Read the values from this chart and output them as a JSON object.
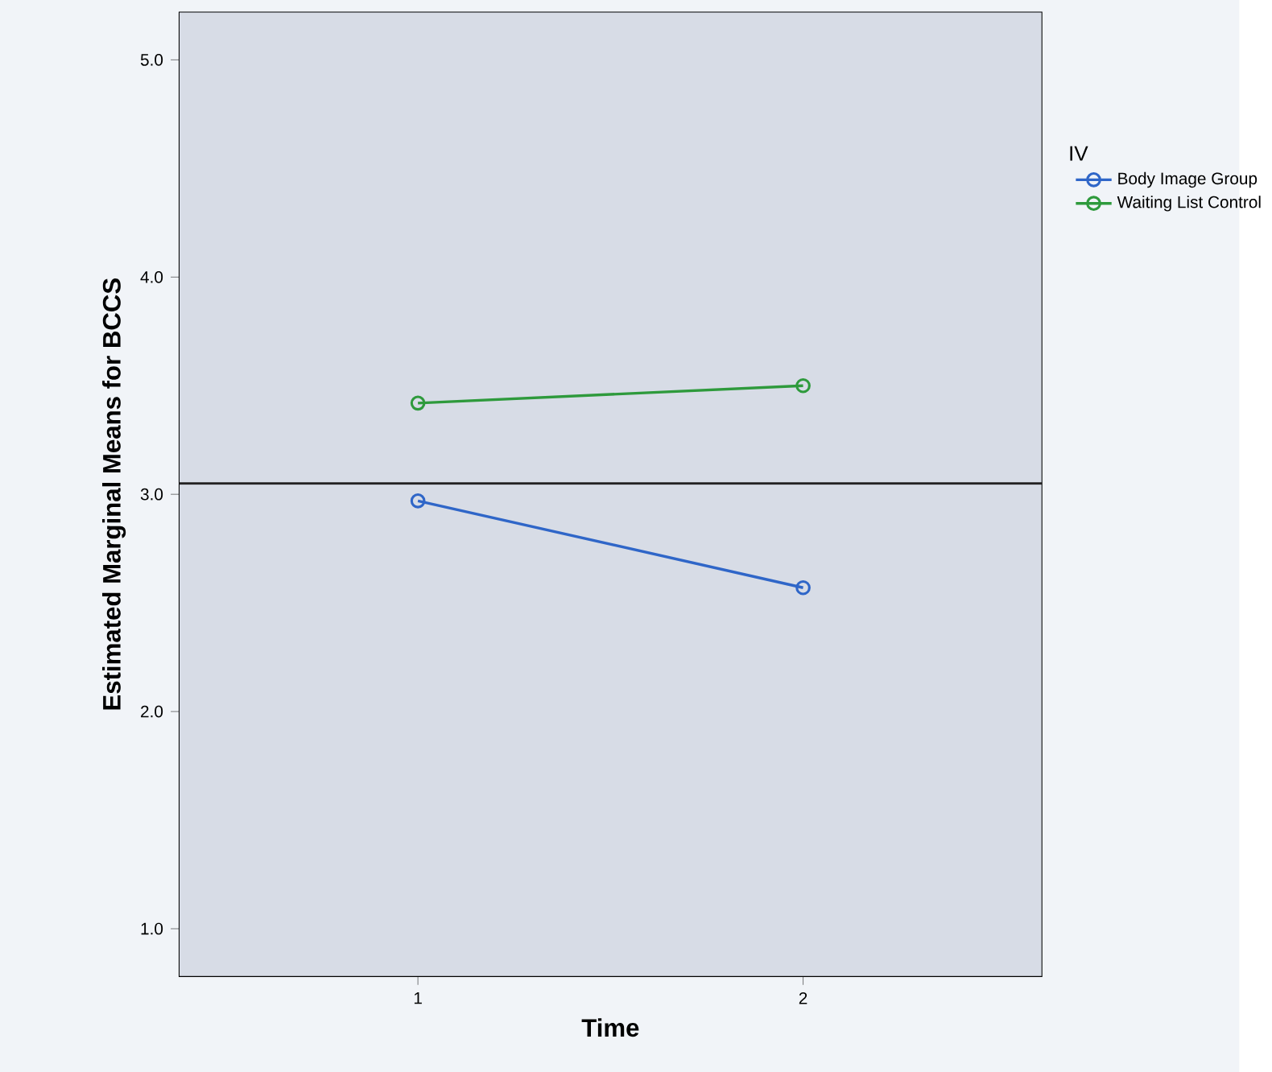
{
  "chart_data": {
    "type": "line",
    "xlabel": "Time",
    "ylabel": "Estimated Marginal Means for BCCS",
    "legend_title": "IV",
    "x": [
      1,
      2
    ],
    "series": [
      {
        "name": "Body Image Group",
        "color": "#2f66c8",
        "values": [
          2.97,
          2.57
        ]
      },
      {
        "name": "Waiting List Control",
        "color": "#2e9a3c",
        "values": [
          3.42,
          3.5
        ]
      }
    ],
    "xlim": [
      0.38,
      2.62
    ],
    "xticks": [
      1,
      2
    ],
    "ylim": [
      0.78,
      5.22
    ],
    "yticks": [
      {
        "value": 1,
        "label": "1.0"
      },
      {
        "value": 2,
        "label": "2.0"
      },
      {
        "value": 3,
        "label": "3.0"
      },
      {
        "value": 4,
        "label": "4.0"
      },
      {
        "value": 5,
        "label": "5.0"
      }
    ],
    "ref_lines": [
      {
        "axis": "y",
        "value": 3.05,
        "color": "#222222"
      }
    ],
    "marker": "circle",
    "line_style": "solid",
    "legend": "right",
    "grid": false
  }
}
